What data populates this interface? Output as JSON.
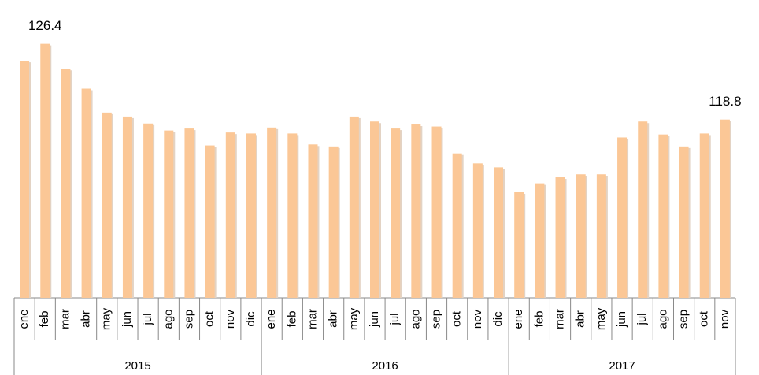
{
  "chart_data": {
    "type": "bar",
    "color": "#fbc796",
    "ylim": [
      100.9,
      130.8
    ],
    "groups": [
      {
        "name": "2015",
        "categories": [
          "ene",
          "feb",
          "mar",
          "abr",
          "may",
          "jun",
          "jul",
          "ago",
          "sep",
          "oct",
          "nov",
          "dic"
        ],
        "values": [
          124.7,
          126.4,
          123.9,
          121.9,
          119.5,
          119.1,
          118.4,
          117.7,
          117.9,
          116.2,
          117.5,
          117.4
        ],
        "value_labels": [
          null,
          "126.4",
          null,
          null,
          null,
          null,
          null,
          null,
          null,
          null,
          null,
          null
        ]
      },
      {
        "name": "2016",
        "categories": [
          "ene",
          "feb",
          "mar",
          "abr",
          "may",
          "jun",
          "jul",
          "ago",
          "sep",
          "oct",
          "nov",
          "dic"
        ],
        "values": [
          118.0,
          117.4,
          116.3,
          116.1,
          119.1,
          118.6,
          117.9,
          118.3,
          118.1,
          115.4,
          114.4,
          114.0
        ],
        "value_labels": [
          null,
          null,
          null,
          null,
          null,
          null,
          null,
          null,
          null,
          null,
          null,
          null
        ]
      },
      {
        "name": "2017",
        "categories": [
          "ene",
          "feb",
          "mar",
          "abr",
          "may",
          "jun",
          "jul",
          "ago",
          "sep",
          "oct",
          "nov"
        ],
        "values": [
          111.5,
          112.4,
          113.0,
          113.3,
          113.3,
          117.0,
          118.6,
          117.3,
          116.1,
          117.4,
          118.8
        ],
        "value_labels": [
          null,
          null,
          null,
          null,
          null,
          null,
          null,
          null,
          null,
          null,
          "118.8"
        ]
      }
    ]
  }
}
